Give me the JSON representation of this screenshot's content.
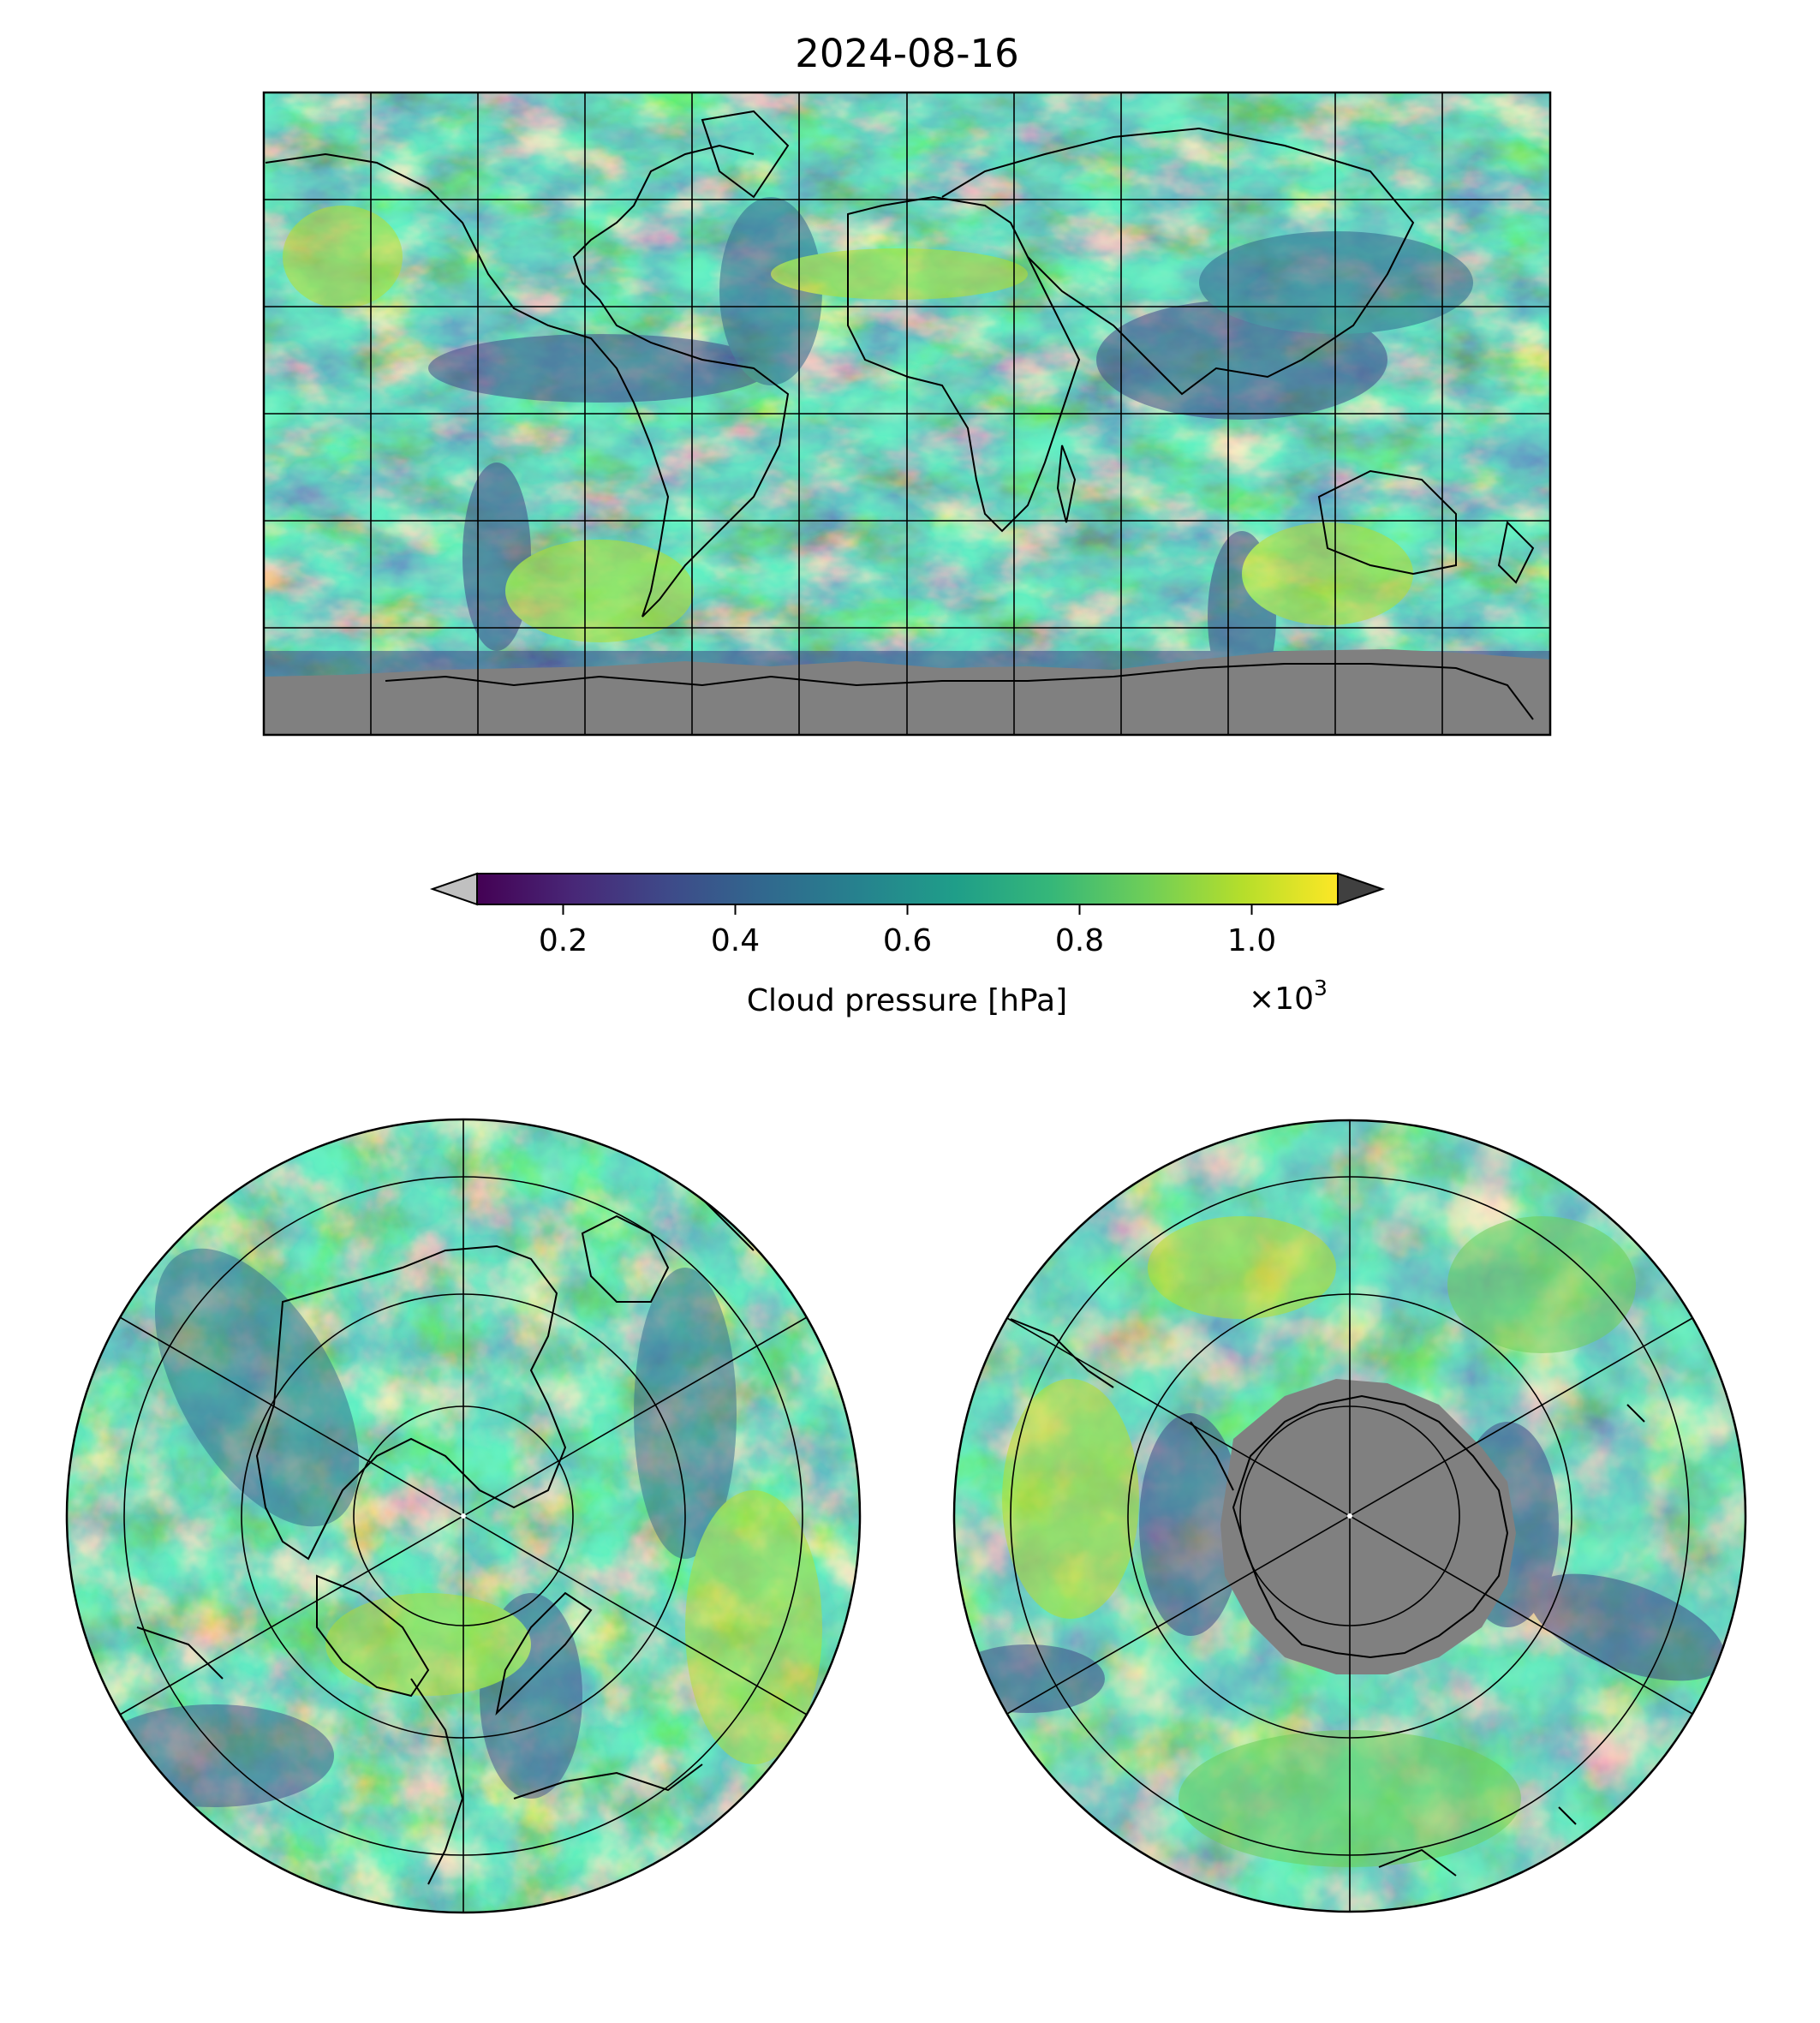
{
  "title": "2024-08-16",
  "colorbar": {
    "label": "Cloud pressure [hPa]",
    "ticks": [
      "0.2",
      "0.4",
      "0.6",
      "0.8",
      "1.0"
    ],
    "tick_values": [
      0.2,
      0.4,
      0.6,
      0.8,
      1.0
    ],
    "range": [
      0.1,
      1.1
    ],
    "offset_base": "×10",
    "offset_exp": "3",
    "cmap": "viridis",
    "under_color": "#c0c0c0",
    "over_color": "#404040",
    "missing_color": "#808080"
  },
  "colors": {
    "viridis": [
      "#440154",
      "#482777",
      "#3e4a89",
      "#31688e",
      "#26828e",
      "#1f9e89",
      "#35b779",
      "#6ece58",
      "#b5de2b",
      "#fde725"
    ]
  },
  "panels": {
    "global": {
      "projection": "equirectangular",
      "gridlines": true
    },
    "north_polar": {
      "projection": "north-polar-stereographic",
      "gridlines": true
    },
    "south_polar": {
      "projection": "south-polar-stereographic",
      "gridlines": true
    }
  }
}
